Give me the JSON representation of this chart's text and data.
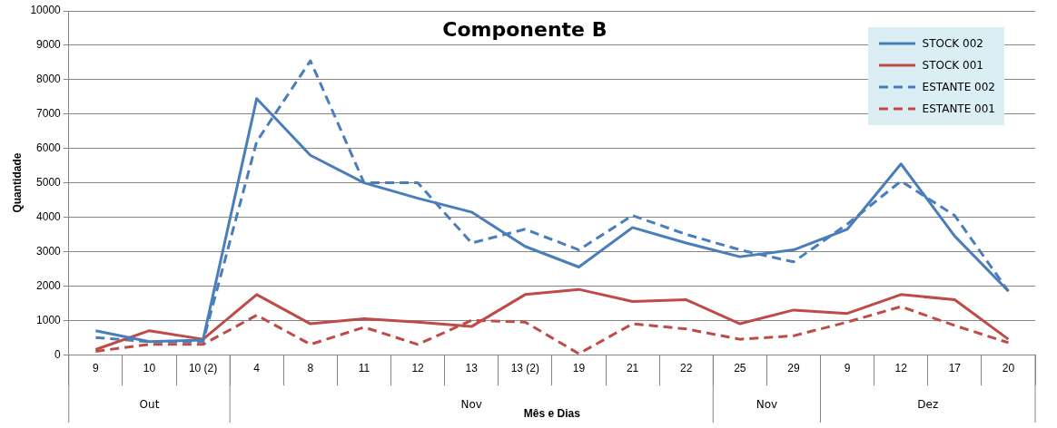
{
  "chart_data": {
    "type": "line",
    "title": "Componente B",
    "xlabel": "Mês e Dias",
    "ylabel": "Quantidade",
    "categories": [
      "9",
      "10",
      "10 (2)",
      "4",
      "8",
      "11",
      "12",
      "13",
      "13 (2)",
      "19",
      "21",
      "22",
      "25",
      "29",
      "9",
      "12",
      "17",
      "20"
    ],
    "annotations": [
      "Out",
      "Nov",
      "Nov",
      "Dez"
    ],
    "series": [
      {
        "name": "STOCK 002",
        "color": "#4a7ebb",
        "line_style": "solid",
        "values": [
          700,
          380,
          430,
          7450,
          5800,
          5000,
          4550,
          4150,
          3150,
          2550,
          3700,
          3250,
          2850,
          3050,
          3650,
          5550,
          3450,
          1850
        ]
      },
      {
        "name": "STOCK 001",
        "color": "#be4b48",
        "line_style": "solid",
        "values": [
          150,
          700,
          450,
          1750,
          900,
          1050,
          950,
          820,
          1750,
          1900,
          1550,
          1600,
          900,
          1300,
          1200,
          1750,
          1600,
          450
        ]
      },
      {
        "name": "ESTANTE 002",
        "color": "#4a7ebb",
        "line_style": "dashed",
        "values": [
          500,
          380,
          380,
          6200,
          8550,
          5000,
          5000,
          3250,
          3650,
          3050,
          4050,
          3500,
          3050,
          2700,
          3800,
          5050,
          4050,
          1850
        ]
      },
      {
        "name": "ESTANTE 001",
        "color": "#be4b48",
        "line_style": "dashed",
        "values": [
          100,
          300,
          300,
          1150,
          300,
          800,
          300,
          1000,
          950,
          30,
          900,
          750,
          450,
          550,
          950,
          1400,
          850,
          350
        ]
      }
    ],
    "ylim": [
      0,
      10000
    ],
    "yticks": [
      0,
      1000,
      2000,
      3000,
      4000,
      5000,
      6000,
      7000,
      8000,
      9000,
      10000
    ],
    "grid": "y",
    "legend": "top right",
    "marker": "none"
  }
}
